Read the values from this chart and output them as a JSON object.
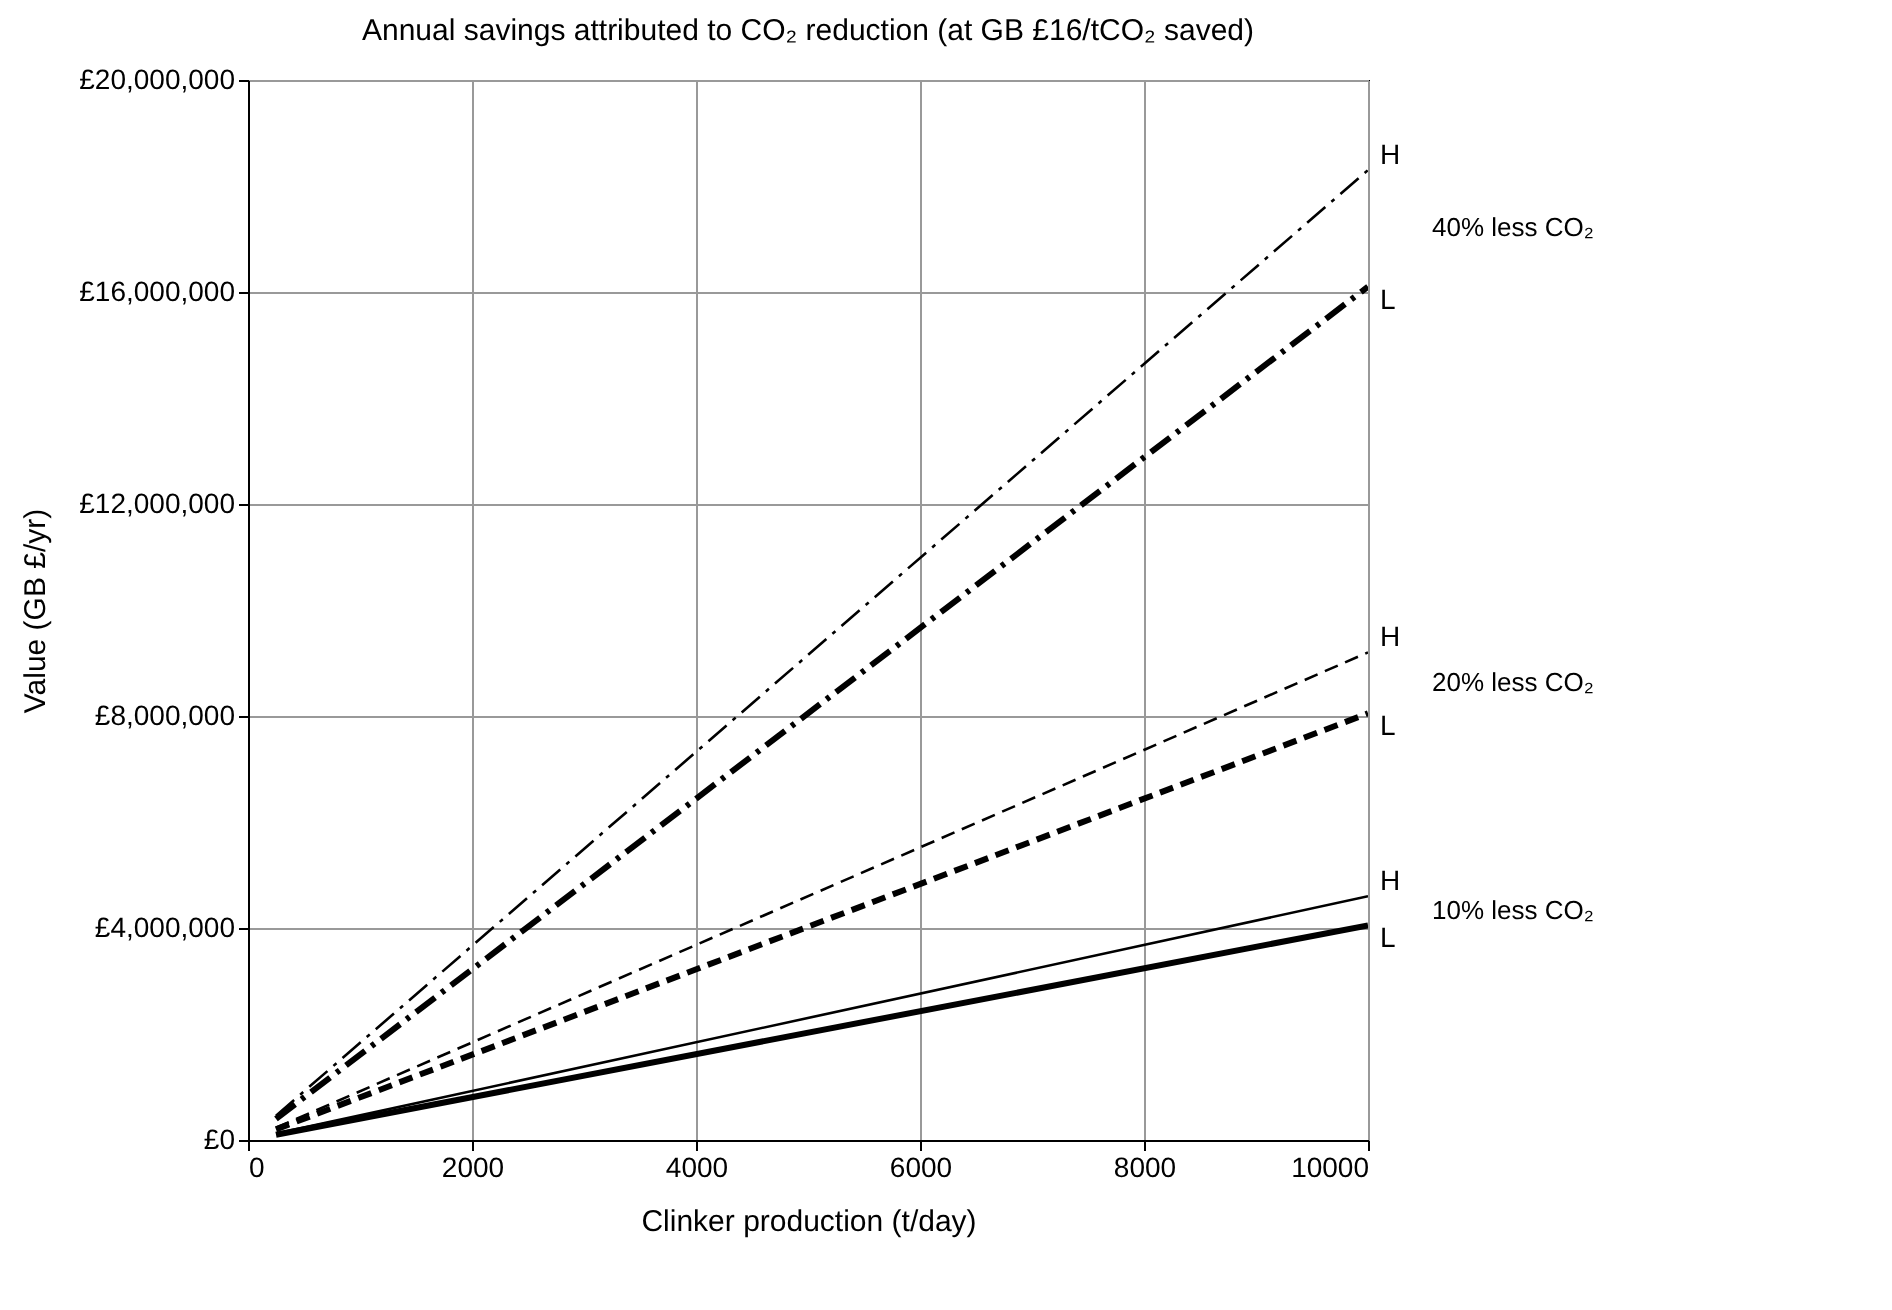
{
  "chart_data": {
    "type": "line",
    "title": "Annual savings attributed to CO₂ reduction (at GB £16/tCO₂ saved)",
    "xlabel": "Clinker production (t/day)",
    "ylabel": "Value (GB £/yr)",
    "x": [
      250,
      10000
    ],
    "series": [
      {
        "name": "H",
        "color": "#000000",
        "values": [
          460000,
          18300000
        ],
        "line_style": "dashdot"
      },
      {
        "name": "L",
        "color": "#000000",
        "values": [
          400000,
          16100000
        ],
        "line_style": "dashdot"
      },
      {
        "name": "H",
        "color": "#000000",
        "values": [
          230000,
          9200000
        ],
        "line_style": "dashed"
      },
      {
        "name": "L",
        "color": "#000000",
        "values": [
          200000,
          8050000
        ],
        "line_style": "dashed"
      },
      {
        "name": "H",
        "color": "#000000",
        "values": [
          120000,
          4600000
        ],
        "line_style": "solid"
      },
      {
        "name": "L",
        "color": "#000000",
        "values": [
          100000,
          4050000
        ],
        "line_style": "solid"
      }
    ],
    "annotations": [
      "40% less CO₂",
      "20% less CO₂",
      "10% less CO₂"
    ],
    "xlim": [
      0,
      10000
    ],
    "xticks": [
      0,
      2000,
      4000,
      6000,
      8000,
      10000
    ],
    "ylim": [
      0,
      20000000
    ],
    "yticks": [
      {
        "value": 0,
        "label": "£0"
      },
      {
        "value": 4000000,
        "label": "£4,000,000"
      },
      {
        "value": 8000000,
        "label": "£8,000,000"
      },
      {
        "value": 12000000,
        "label": "£12,000,000"
      },
      {
        "value": 16000000,
        "label": "£16,000,000"
      },
      {
        "value": 20000000,
        "label": "£20,000,000"
      }
    ],
    "grid": true,
    "marker": "none"
  }
}
